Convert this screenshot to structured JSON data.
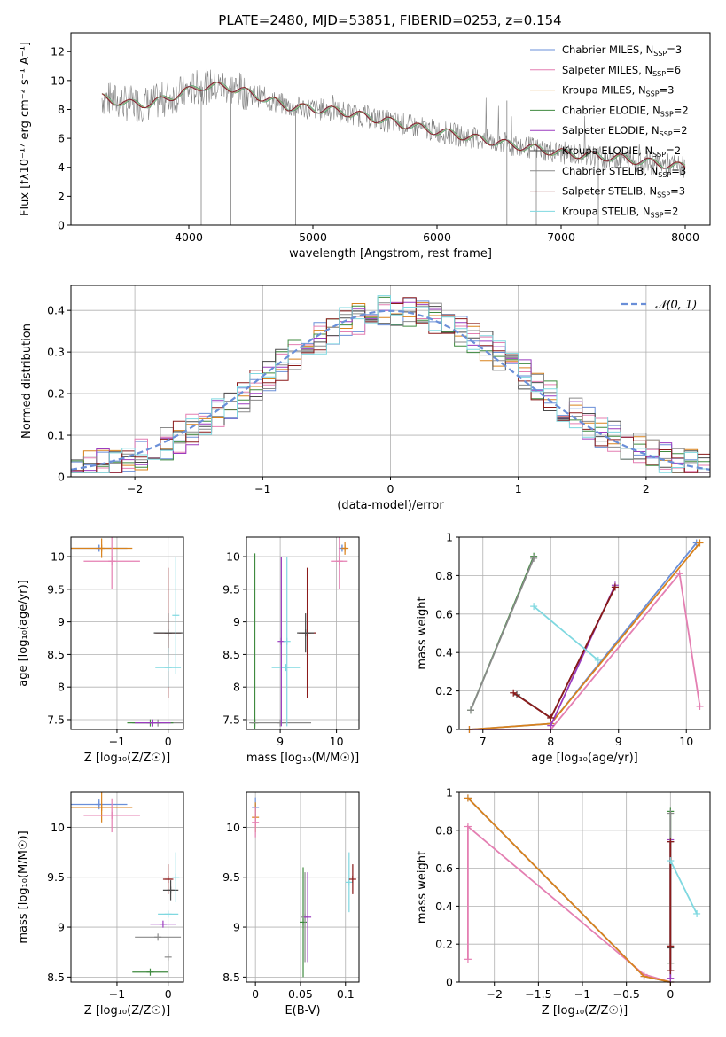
{
  "figure": {
    "title": "PLATE=2480, MJD=53851, FIBERID=0253, z=0.154"
  },
  "legend_models": [
    {
      "label": "Chabrier MILES, N",
      "sub": "SSP",
      "tail": "=3",
      "color": "#6a8fd8"
    },
    {
      "label": "Salpeter MILES, N",
      "sub": "SSP",
      "tail": "=6",
      "color": "#e47fb2"
    },
    {
      "label": "Kroupa MILES, N",
      "sub": "SSP",
      "tail": "=3",
      "color": "#d9821c"
    },
    {
      "label": "Chabrier ELODIE, N",
      "sub": "SSP",
      "tail": "=2",
      "color": "#3f8a3f"
    },
    {
      "label": "Salpeter ELODIE, N",
      "sub": "SSP",
      "tail": "=2",
      "color": "#9b3bbf"
    },
    {
      "label": "Kroupa ELODIE, N",
      "sub": "SSP",
      "tail": "=2",
      "color": "#4a4a4a"
    },
    {
      "label": "Chabrier STELIB, N",
      "sub": "SSP",
      "tail": "=3",
      "color": "#8a8a8a"
    },
    {
      "label": "Salpeter STELIB, N",
      "sub": "SSP",
      "tail": "=3",
      "color": "#8b1a1a"
    },
    {
      "label": "Kroupa STELIB, N",
      "sub": "SSP",
      "tail": "=2",
      "color": "#7fd8e0"
    }
  ],
  "chart_data": [
    {
      "id": "spectrum",
      "type": "line",
      "xlabel": "wavelength [Angstrom, rest frame]",
      "ylabel": "Flux [fλ10⁻¹⁷ erg cm⁻² s⁻¹ A⁻¹]",
      "xlim": [
        3050,
        8200
      ],
      "ylim": [
        0,
        13.3
      ],
      "xticks": [
        4000,
        5000,
        6000,
        7000,
        8000
      ],
      "yticks": [
        0,
        2,
        4,
        6,
        8,
        10,
        12
      ],
      "grid": false,
      "legend_position": "upper-right",
      "continuum": {
        "x": [
          3300,
          3500,
          3700,
          3900,
          4100,
          4300,
          4500,
          4800,
          5200,
          5600,
          6000,
          6500,
          7000,
          7500,
          8000
        ],
        "y": [
          8.8,
          8.4,
          8.4,
          9.0,
          9.6,
          9.6,
          9.1,
          8.2,
          7.9,
          7.2,
          6.5,
          5.7,
          5.0,
          4.6,
          4.0
        ]
      }
    },
    {
      "id": "residuals",
      "type": "line",
      "xlabel": "(data-model)/error",
      "ylabel": "Normed distribution",
      "xlim": [
        -2.5,
        2.5
      ],
      "ylim": [
        0,
        0.46
      ],
      "xticks": [
        -2,
        -1,
        0,
        1,
        2
      ],
      "yticks": [
        0.0,
        0.1,
        0.2,
        0.3,
        0.4
      ],
      "grid": true,
      "legend_position": "upper-right",
      "legend_label": "𝒩(0, 1)",
      "bin_width": 0.1
    },
    {
      "id": "age-vs-Z",
      "type": "scatter",
      "xlabel": "Z [log₁₀(Z/Z☉)]",
      "ylabel": "age  [log₁₀(age/yr)]",
      "xlim": [
        -1.9,
        0.3
      ],
      "ylim": [
        7.35,
        10.3
      ],
      "xticks": [
        -1,
        0
      ],
      "yticks": [
        7.5,
        8.0,
        8.5,
        9.0,
        9.5,
        10.0
      ],
      "grid": true,
      "points": [
        {
          "model": 0,
          "x": -1.35,
          "y": 10.13,
          "xerr": 0.55,
          "yerr": 0.05
        },
        {
          "model": 2,
          "x": -1.3,
          "y": 10.13,
          "xerr": 0.6,
          "yerr": 0.15
        },
        {
          "model": 1,
          "x": -1.1,
          "y": 9.93,
          "xerr": 0.55,
          "yerr": 0.42
        },
        {
          "model": 7,
          "x": 0.0,
          "y": 8.83,
          "xerr": 0.25,
          "yerr": 1.0
        },
        {
          "model": 5,
          "x": 0.0,
          "y": 8.83,
          "xerr": 0.28,
          "yerr": 0.3
        },
        {
          "model": 8,
          "x": 0.0,
          "y": 8.3,
          "xerr": 0.25,
          "yerr": 0.3
        },
        {
          "model": 6,
          "x": -0.2,
          "y": 7.45,
          "xerr": 0.5,
          "yerr": 0.0
        },
        {
          "model": 8,
          "x": 0.15,
          "y": 9.1,
          "xerr": 0.0,
          "yerr": 0.9
        },
        {
          "model": 3,
          "x": -0.35,
          "y": 7.45,
          "xerr": 0.45,
          "yerr": 0.0
        },
        {
          "model": 4,
          "x": -0.3,
          "y": 7.45,
          "xerr": 0.35,
          "yerr": 0.0
        }
      ]
    },
    {
      "id": "age-vs-mass",
      "type": "scatter",
      "xlabel": "mass [log₁₀(M/M☉)]",
      "ylabel": "",
      "xlim": [
        8.4,
        10.4
      ],
      "ylim": [
        7.35,
        10.3
      ],
      "xticks": [
        9,
        10
      ],
      "yticks": [
        7.5,
        8.0,
        8.5,
        9.0,
        9.5,
        10.0
      ],
      "grid": true,
      "points": [
        {
          "model": 0,
          "x": 10.1,
          "y": 10.13,
          "xerr": 0.05,
          "yerr": 0.05
        },
        {
          "model": 2,
          "x": 10.15,
          "y": 10.13,
          "xerr": 0.05,
          "yerr": 0.1
        },
        {
          "model": 1,
          "x": 10.05,
          "y": 9.93,
          "xerr": 0.15,
          "yerr": 0.42
        },
        {
          "model": 7,
          "x": 9.48,
          "y": 8.83,
          "xerr": 0.15,
          "yerr": 1.0
        },
        {
          "model": 5,
          "x": 9.45,
          "y": 8.83,
          "xerr": 0.15,
          "yerr": 0.3
        },
        {
          "model": 8,
          "x": 9.1,
          "y": 8.3,
          "xerr": 0.25,
          "yerr": 0.0
        },
        {
          "model": 3,
          "x": 8.55,
          "y": 7.45,
          "xerr": 0.0,
          "yerr": 2.6
        },
        {
          "model": 6,
          "x": 9.0,
          "y": 7.45,
          "xerr": 0.55,
          "yerr": 0.0
        },
        {
          "model": 4,
          "x": 9.02,
          "y": 8.7,
          "xerr": 0.0,
          "yerr": 1.3
        },
        {
          "model": 8,
          "x": 9.12,
          "y": 8.7,
          "xerr": 0.0,
          "yerr": 1.3
        }
      ]
    },
    {
      "id": "massweight-vs-age",
      "type": "line",
      "xlabel": "age  [log₁₀(age/yr)]",
      "ylabel": "mass weight",
      "xlim": [
        6.65,
        10.35
      ],
      "ylim": [
        0,
        1.0
      ],
      "xticks": [
        7,
        8,
        9,
        10
      ],
      "yticks": [
        0.0,
        0.2,
        0.4,
        0.6,
        0.8,
        1.0
      ],
      "grid": true,
      "series": [
        {
          "model": 0,
          "x": [
            6.8,
            8.0,
            10.15
          ],
          "y": [
            0.0,
            0.03,
            0.97
          ]
        },
        {
          "model": 1,
          "x": [
            6.8,
            8.0,
            9.9,
            10.2
          ],
          "y": [
            0.0,
            0.0,
            0.81,
            0.12
          ]
        },
        {
          "model": 2,
          "x": [
            6.8,
            8.0,
            10.2
          ],
          "y": [
            0.0,
            0.03,
            0.97
          ]
        },
        {
          "model": 3,
          "x": [
            6.82,
            7.75
          ],
          "y": [
            0.1,
            0.9
          ]
        },
        {
          "model": 4,
          "x": [
            8.0,
            8.95
          ],
          "y": [
            0.02,
            0.75
          ]
        },
        {
          "model": 5,
          "x": [
            7.5,
            8.0,
            8.95
          ],
          "y": [
            0.18,
            0.06,
            0.74
          ]
        },
        {
          "model": 6,
          "x": [
            6.82,
            7.75
          ],
          "y": [
            0.1,
            0.89
          ]
        },
        {
          "model": 7,
          "x": [
            7.45,
            8.0,
            8.95
          ],
          "y": [
            0.19,
            0.06,
            0.74
          ]
        },
        {
          "model": 8,
          "x": [
            7.75,
            8.7
          ],
          "y": [
            0.64,
            0.36
          ]
        }
      ]
    },
    {
      "id": "mass-vs-Z",
      "type": "scatter",
      "xlabel": "Z [log₁₀(Z/Z☉)]",
      "ylabel": "mass [log₁₀(M/M☉)]",
      "xlim": [
        -1.9,
        0.3
      ],
      "ylim": [
        8.45,
        10.35
      ],
      "xticks": [
        -1,
        0
      ],
      "yticks": [
        8.5,
        9.0,
        9.5,
        10.0
      ],
      "grid": true,
      "points": [
        {
          "model": 0,
          "x": -1.35,
          "y": 10.23,
          "xerr": 0.55,
          "yerr": 0.05
        },
        {
          "model": 2,
          "x": -1.3,
          "y": 10.2,
          "xerr": 0.6,
          "yerr": 0.15
        },
        {
          "model": 1,
          "x": -1.1,
          "y": 10.12,
          "xerr": 0.55,
          "yerr": 0.17
        },
        {
          "model": 7,
          "x": 0.0,
          "y": 9.48,
          "xerr": 0.1,
          "yerr": 0.15
        },
        {
          "model": 5,
          "x": 0.05,
          "y": 9.37,
          "xerr": 0.15,
          "yerr": 0.1
        },
        {
          "model": 8,
          "x": 0.0,
          "y": 9.13,
          "xerr": 0.2,
          "yerr": 0.0
        },
        {
          "model": 8,
          "x": 0.15,
          "y": 9.5,
          "xerr": 0.0,
          "yerr": 0.25
        },
        {
          "model": 4,
          "x": -0.1,
          "y": 9.03,
          "xerr": 0.25,
          "yerr": 0.0
        },
        {
          "model": 6,
          "x": -0.2,
          "y": 8.9,
          "xerr": 0.45,
          "yerr": 0.0
        },
        {
          "model": 3,
          "x": -0.35,
          "y": 8.55,
          "xerr": 0.35,
          "yerr": 0.0
        },
        {
          "model": 6,
          "x": 0.0,
          "y": 8.7,
          "xerr": 0.0,
          "yerr": 0.2
        }
      ]
    },
    {
      "id": "mass-vs-ebv",
      "type": "scatter",
      "xlabel": "E(B-V)",
      "ylabel": "",
      "xlim": [
        -0.01,
        0.115
      ],
      "ylim": [
        8.45,
        10.35
      ],
      "xticks": [
        0.0,
        0.05,
        0.1
      ],
      "yticks": [
        8.5,
        9.0,
        9.5,
        10.0
      ],
      "grid": true,
      "points": [
        {
          "model": 0,
          "x": 0.0,
          "y": 10.2,
          "xerr": 0.0,
          "yerr": 0.1
        },
        {
          "model": 2,
          "x": 0.0,
          "y": 10.1,
          "xerr": 0.0,
          "yerr": 0.15
        },
        {
          "model": 1,
          "x": 0.0,
          "y": 10.05,
          "xerr": 0.0,
          "yerr": 0.15
        },
        {
          "model": 3,
          "x": 0.053,
          "y": 9.05,
          "xerr": 0.0,
          "yerr": 0.55
        },
        {
          "model": 6,
          "x": 0.055,
          "y": 9.1,
          "xerr": 0.0,
          "yerr": 0.45
        },
        {
          "model": 4,
          "x": 0.058,
          "y": 9.1,
          "xerr": 0.0,
          "yerr": 0.45
        },
        {
          "model": 8,
          "x": 0.104,
          "y": 9.45,
          "xerr": 0.0,
          "yerr": 0.3
        },
        {
          "model": 7,
          "x": 0.108,
          "y": 9.48,
          "xerr": 0.0,
          "yerr": 0.15
        }
      ]
    },
    {
      "id": "massweight-vs-Z",
      "type": "line",
      "xlabel": "Z [log₁₀(Z/Z☉)]",
      "ylabel": "mass weight",
      "xlim": [
        -2.4,
        0.45
      ],
      "ylim": [
        0,
        1.0
      ],
      "xticks": [
        -2.0,
        -1.5,
        -1.0,
        -0.5,
        0.0
      ],
      "yticks": [
        0.0,
        0.2,
        0.4,
        0.6,
        0.8,
        1.0
      ],
      "grid": true,
      "series": [
        {
          "model": 0,
          "x": [
            -2.3,
            -0.3,
            0.0
          ],
          "y": [
            0.97,
            0.03,
            0.0
          ]
        },
        {
          "model": 1,
          "x": [
            -2.3,
            -2.3,
            -0.3,
            0.0
          ],
          "y": [
            0.12,
            0.82,
            0.04,
            0.0
          ]
        },
        {
          "model": 2,
          "x": [
            -2.3,
            -0.3,
            0.0
          ],
          "y": [
            0.97,
            0.03,
            0.0
          ]
        },
        {
          "model": 3,
          "x": [
            0.0,
            0.0
          ],
          "y": [
            0.1,
            0.9
          ]
        },
        {
          "model": 4,
          "x": [
            0.0,
            0.0
          ],
          "y": [
            0.02,
            0.75
          ]
        },
        {
          "model": 5,
          "x": [
            0.0,
            0.0,
            0.0
          ],
          "y": [
            0.06,
            0.18,
            0.74
          ]
        },
        {
          "model": 6,
          "x": [
            0.0,
            0.0
          ],
          "y": [
            0.1,
            0.89
          ]
        },
        {
          "model": 7,
          "x": [
            0.0,
            0.0,
            0.0
          ],
          "y": [
            0.06,
            0.19,
            0.74
          ]
        },
        {
          "model": 8,
          "x": [
            0.0,
            0.3
          ],
          "y": [
            0.64,
            0.36
          ]
        }
      ]
    }
  ]
}
